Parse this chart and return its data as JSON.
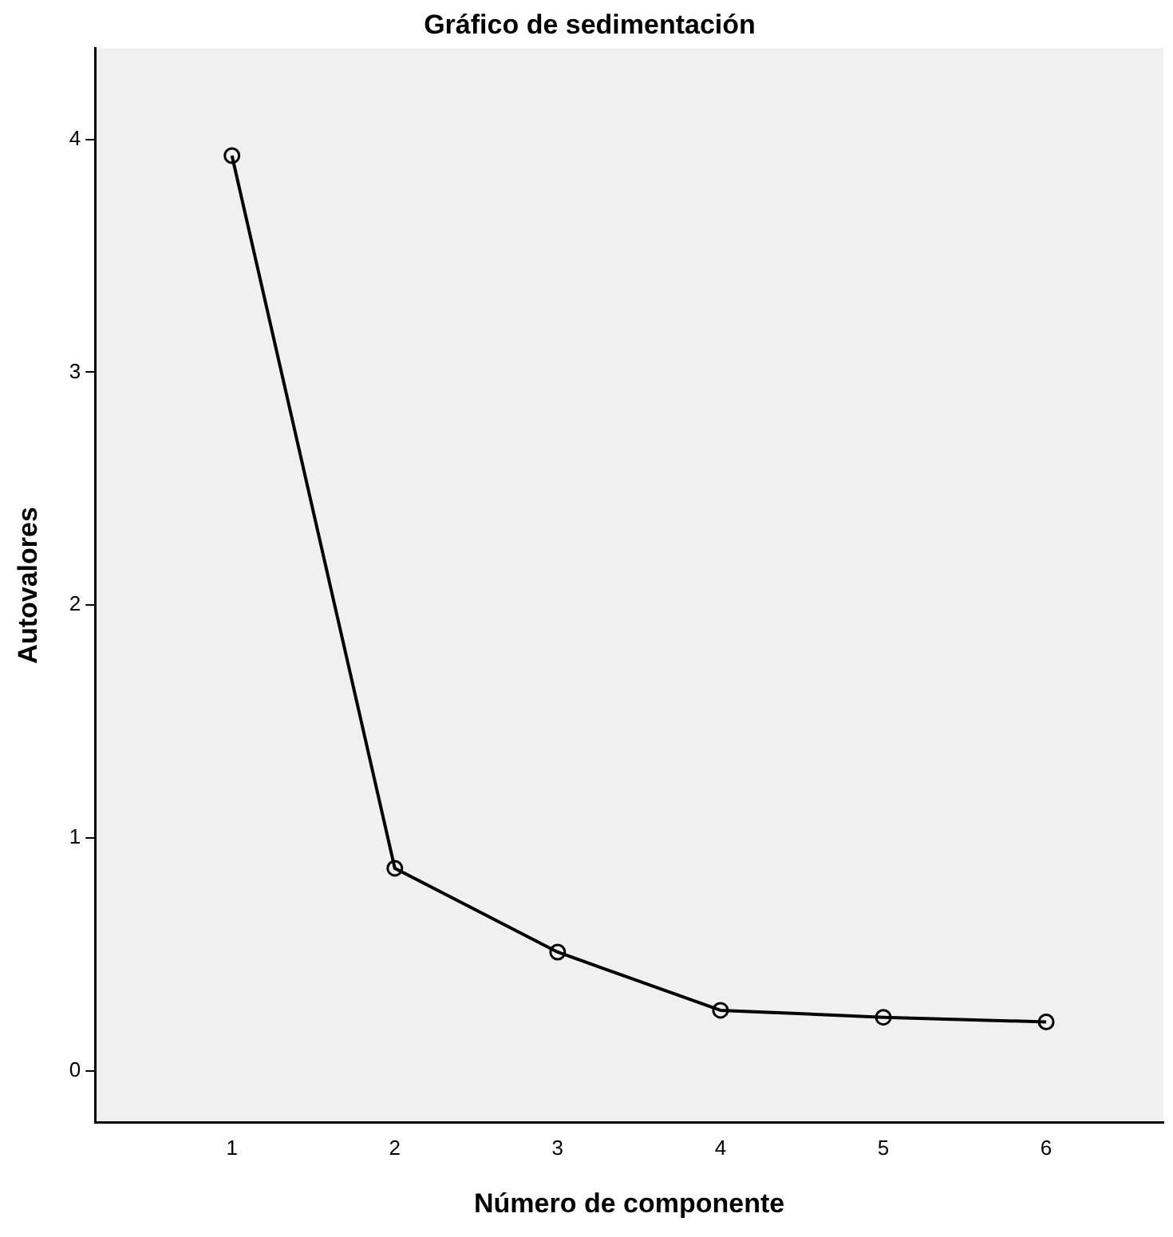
{
  "chart_data": {
    "type": "line",
    "title": "Gráfico de sedimentación",
    "xlabel": "Número de componente",
    "ylabel": "Autovalores",
    "x": [
      1,
      2,
      3,
      4,
      5,
      6
    ],
    "series": [
      {
        "color": "#000000",
        "values": [
          3.93,
          0.87,
          0.51,
          0.26,
          0.23,
          0.21
        ]
      }
    ],
    "xlim": [
      0.16,
      6.72
    ],
    "xticks": [
      1,
      2,
      3,
      4,
      5,
      6
    ],
    "ylim": [
      -0.22,
      4.39
    ],
    "yticks": [
      0,
      1,
      2,
      3,
      4
    ],
    "marker": "circle",
    "line_style": "solid",
    "grid": false,
    "legend": false
  }
}
